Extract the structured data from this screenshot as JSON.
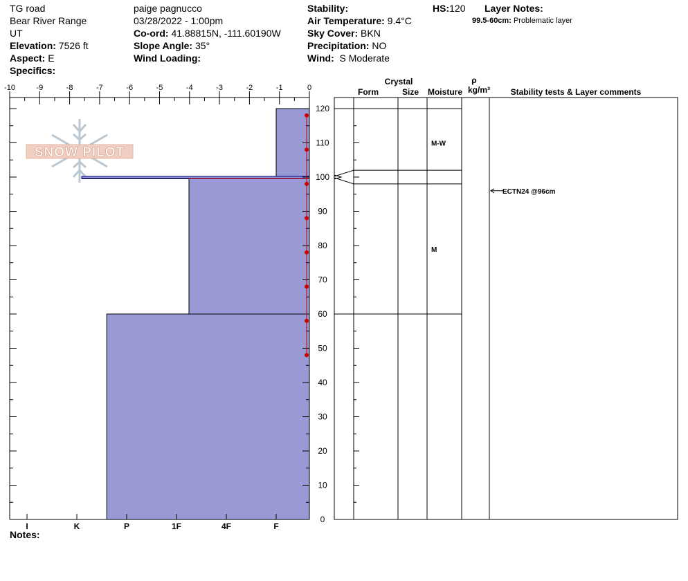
{
  "header": {
    "location": "TG road",
    "range": "Bear River Range",
    "state": "UT",
    "elevation_label": "Elevation:",
    "elevation_value": "7526 ft",
    "aspect_label": "Aspect:",
    "aspect_value": "E",
    "specifics_label": "Specifics:",
    "observer": "paige pagnucco",
    "datetime": "03/28/2022 - 1:00pm",
    "coord_label": "Co-ord:",
    "coord_value": "41.88815N, -111.60190W",
    "slope_label": "Slope Angle:",
    "slope_value": "35°",
    "wind_loading_label": "Wind Loading:",
    "stability_label": "Stability:",
    "air_temp_label": "Air Temperature:",
    "air_temp_value": "9.4°C",
    "sky_label": "Sky Cover:",
    "sky_value": "BKN",
    "precip_label": "Precipitation:",
    "precip_value": "NO",
    "wind_label": "Wind:",
    "wind_value": "S Moderate",
    "hs_label": "HS:",
    "hs_value": "120",
    "layer_notes_label": "Layer Notes:",
    "layer_note_range": "99.5-60cm:",
    "layer_note_text": "Problematic layer"
  },
  "logo_text": "SNOW PILOT",
  "columns": {
    "crystal": "Crystal",
    "form": "Form",
    "size": "Size",
    "moisture": "Moisture",
    "rho": "ρ",
    "density_unit": "kg/m³",
    "stability": "Stability tests & Layer comments"
  },
  "notes_label": "Notes:",
  "colors": {
    "hardness_fill": "#9999d6",
    "hardness_stroke": "#000080",
    "temperature": "#cc0000"
  },
  "chart_data": {
    "type": "bar",
    "temperature_axis": {
      "ticks": [
        "-10",
        "-9",
        "-8",
        "-7",
        "-6",
        "-5",
        "-4",
        "-3",
        "-2",
        "-1",
        "0"
      ],
      "range": [
        -10,
        0
      ]
    },
    "hardness_axis": {
      "ticks": [
        "I",
        "K",
        "P",
        "1F",
        "4F",
        "F"
      ]
    },
    "height_axis": {
      "ticks": [
        "0",
        "10",
        "20",
        "30",
        "40",
        "50",
        "60",
        "70",
        "80",
        "90",
        "100",
        "110",
        "120"
      ],
      "range": [
        0,
        120
      ],
      "unit": "cm"
    },
    "hardness_layers": [
      {
        "top": 120,
        "bottom": 100,
        "hardness": 1.0
      },
      {
        "top": 100,
        "bottom": 99.5,
        "hardness": 4.9
      },
      {
        "top": 99.5,
        "bottom": 60,
        "hardness": 2.75
      },
      {
        "top": 60,
        "bottom": 0,
        "hardness": 4.4
      }
    ],
    "temperature_profile": [
      {
        "height": 118,
        "temp": 0
      },
      {
        "height": 108,
        "temp": 0
      },
      {
        "height": 98,
        "temp": 0
      },
      {
        "height": 88,
        "temp": 0
      },
      {
        "height": 78,
        "temp": 0
      },
      {
        "height": 68,
        "temp": 0
      },
      {
        "height": 58,
        "temp": 0
      },
      {
        "height": 48,
        "temp": 0
      }
    ],
    "layer_boundaries": [
      120,
      102,
      98,
      60
    ],
    "moisture_labels": [
      {
        "height": 110,
        "label": "M-W"
      },
      {
        "height": 79,
        "label": "M"
      }
    ],
    "stability_tests": [
      {
        "height": 96,
        "label": "ECTN24 @96cm"
      }
    ]
  }
}
